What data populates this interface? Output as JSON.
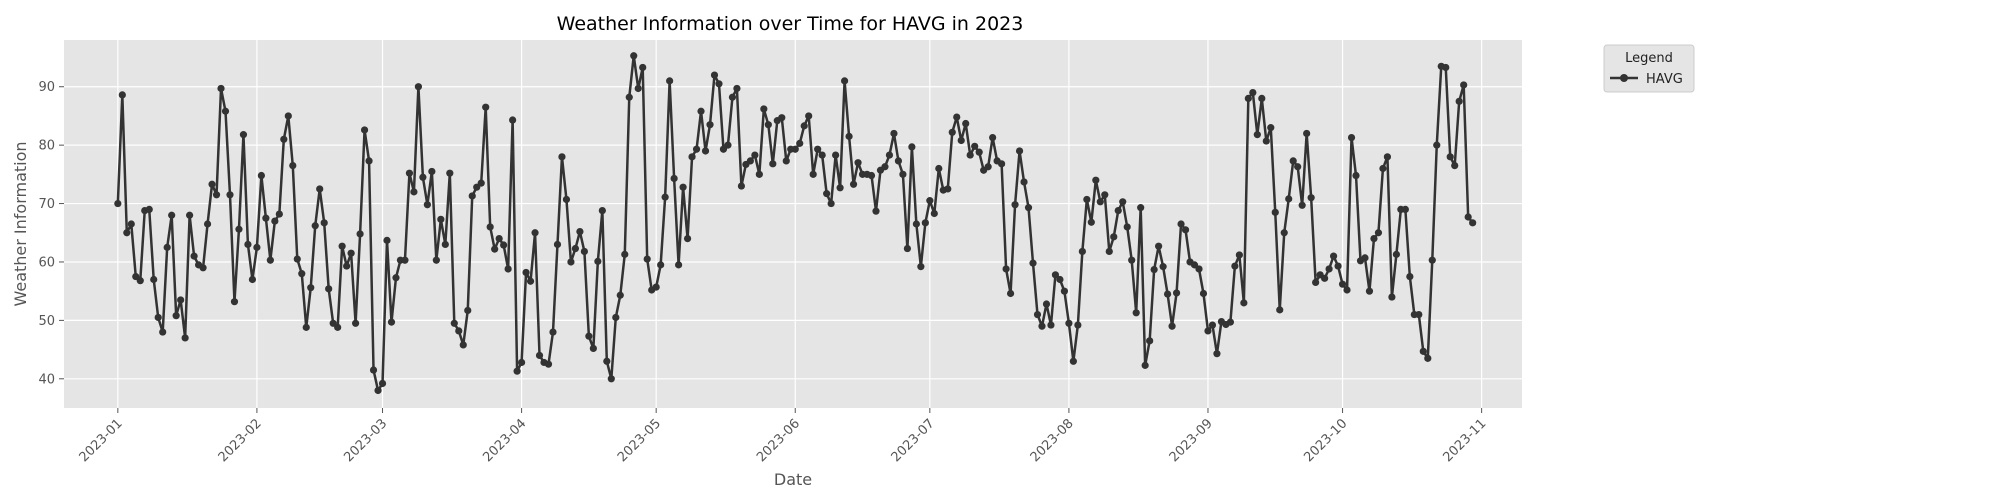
{
  "chart_data": {
    "type": "line",
    "title": "Weather Information over Time for HAVG in 2023",
    "xlabel": "Date",
    "ylabel": "Weather Information",
    "xlim": [
      "2022-12-20",
      "2023-11-10"
    ],
    "ylim": [
      35,
      98
    ],
    "yticks": [
      40,
      50,
      60,
      70,
      80,
      90
    ],
    "xticks": [
      "2023-01",
      "2023-02",
      "2023-03",
      "2023-04",
      "2023-05",
      "2023-06",
      "2023-07",
      "2023-08",
      "2023-09",
      "2023-10",
      "2023-11"
    ],
    "grid": true,
    "legend": {
      "title": "Legend",
      "placement": "outside-top-right",
      "entries": [
        "HAVG"
      ]
    },
    "colors": {
      "background": "#e5e5e5",
      "grid": "#ffffff",
      "line": "#333333"
    },
    "series": [
      {
        "name": "HAVG",
        "x_start": "2023-01-01",
        "x_step_days": 1,
        "values": [
          70.0,
          88.6,
          65.0,
          66.5,
          57.5,
          56.8,
          68.8,
          69.0,
          57.0,
          50.5,
          48.0,
          62.5,
          68.0,
          50.8,
          53.5,
          47.0,
          68.0,
          61.0,
          59.5,
          59.0,
          66.5,
          73.3,
          71.5,
          89.7,
          85.8,
          71.5,
          53.2,
          65.6,
          81.8,
          63.0,
          57.0,
          62.5,
          74.8,
          67.5,
          60.3,
          67.0,
          68.2,
          81.0,
          85.0,
          76.5,
          60.5,
          58.0,
          48.8,
          55.6,
          66.2,
          72.5,
          66.7,
          55.4,
          49.5,
          48.8,
          62.7,
          59.3,
          61.5,
          49.5,
          64.8,
          82.6,
          77.3,
          41.5,
          38.0,
          39.2,
          63.7,
          49.7,
          57.3,
          60.3,
          60.3,
          75.2,
          72.0,
          90.0,
          74.5,
          69.8,
          75.5,
          60.3,
          67.3,
          63.0,
          75.2,
          49.5,
          48.2,
          45.8,
          51.7,
          71.3,
          72.8,
          73.5,
          86.5,
          66.0,
          62.2,
          64.0,
          62.9,
          58.8,
          84.3,
          41.3,
          42.8,
          58.2,
          56.7,
          65.0,
          44.0,
          42.8,
          42.5,
          48.0,
          63.0,
          78.0,
          70.7,
          60.0,
          62.3,
          65.2,
          61.8,
          47.3,
          45.2,
          60.1,
          68.8,
          43.0,
          40.0,
          50.5,
          54.3,
          61.3,
          88.2,
          95.3,
          89.7,
          93.3,
          60.5,
          55.2,
          55.7,
          59.5,
          71.1,
          91.0,
          74.3,
          59.5,
          72.8,
          64.0,
          78.0,
          79.3,
          85.8,
          79.0,
          83.5,
          92.0,
          90.5,
          79.3,
          80.0,
          88.2,
          89.7,
          73.0,
          76.7,
          77.3,
          78.3,
          75.0,
          86.2,
          83.5,
          76.8,
          84.2,
          84.7,
          77.3,
          79.3,
          79.3,
          80.3,
          83.3,
          85.0,
          75.0,
          79.3,
          78.3,
          71.7,
          70.0,
          78.3,
          72.7,
          91.0,
          81.5,
          73.3,
          77.0,
          75.0,
          75.0,
          74.8,
          68.7,
          75.7,
          76.3,
          78.3,
          82.0,
          77.3,
          75.0,
          62.3,
          79.7,
          66.5,
          59.2,
          66.7,
          70.5,
          68.3,
          76.0,
          72.3,
          72.5,
          82.2,
          84.8,
          80.8,
          83.7,
          78.3,
          79.8,
          78.8,
          75.7,
          76.3,
          81.3,
          77.3,
          76.8,
          58.8,
          54.6,
          69.8,
          79.0,
          73.7,
          69.3,
          59.8,
          51.0,
          49.0,
          52.8,
          49.2,
          57.8,
          57.0,
          55.0,
          49.5,
          43.0,
          49.2,
          61.8,
          70.7,
          66.8,
          74.0,
          70.3,
          71.5,
          61.8,
          64.3,
          68.8,
          70.3,
          66.0,
          60.3,
          51.3,
          69.3,
          42.3,
          46.5,
          58.7,
          62.7,
          59.2,
          54.5,
          49.0,
          54.7,
          66.5,
          65.5,
          60.0,
          59.5,
          58.8,
          54.6,
          48.2,
          49.2,
          44.3,
          49.8,
          49.3,
          49.7,
          59.3,
          61.2,
          53.0,
          88.0,
          89.0,
          81.8,
          88.0,
          80.7,
          83.0,
          68.5,
          51.8,
          65.0,
          70.8,
          77.3,
          76.3,
          69.7,
          82.0,
          71.0,
          56.5,
          57.8,
          57.2,
          58.8,
          61.0,
          59.3,
          56.2,
          55.2,
          81.3,
          74.8,
          60.2,
          60.7,
          55.0,
          64.0,
          65.0,
          76.0,
          78.0,
          54.0,
          61.3,
          69.0,
          69.0,
          57.5,
          51.0,
          51.0,
          44.7,
          43.5,
          60.3,
          80.0,
          93.5,
          93.3,
          78.0,
          76.5,
          87.5,
          90.3,
          67.7,
          66.7
        ]
      }
    ]
  }
}
